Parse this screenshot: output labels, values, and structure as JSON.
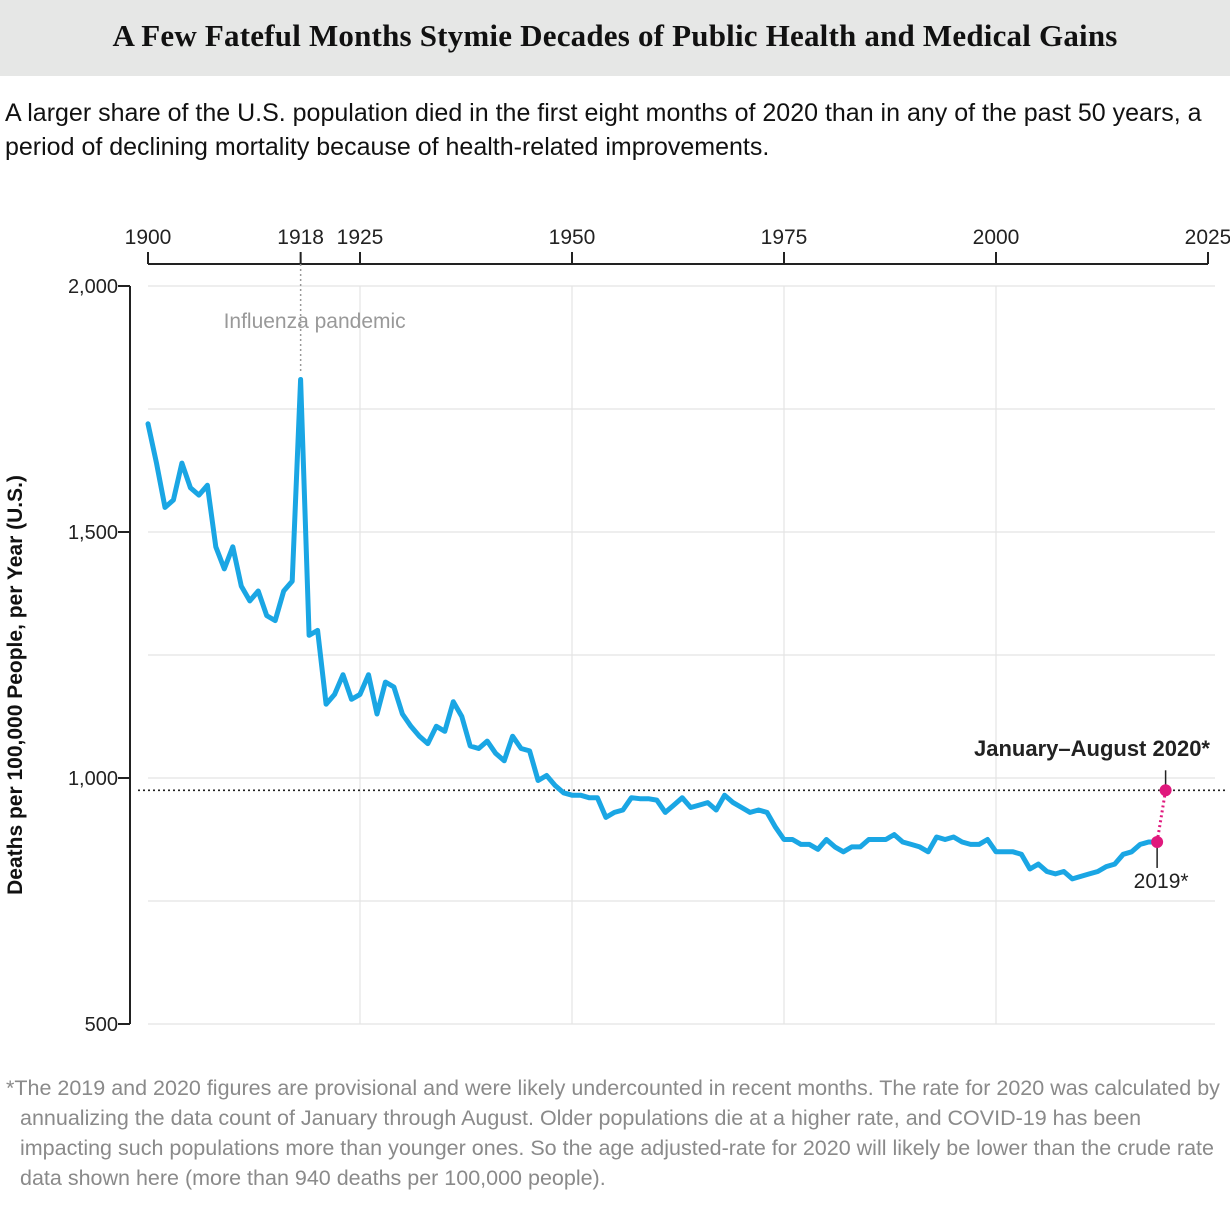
{
  "header": {
    "title": "A Few Fateful Months Stymie Decades of Public Health and Medical Gains",
    "subtitle": "A larger share of the U.S. population died in the first eight months of 2020 than in any of the past 50 years, a period of declining mortality because of health-related improvements."
  },
  "footnote": "*The 2019 and 2020 figures are provisional and were likely undercounted in recent months. The rate for 2020 was calculated by annualizing the data count of January through August. Older populations die at a higher rate, and COVID-19 has been impacting such populations more than younger ones. So the age adjusted-rate for 2020 will likely be lower than the crude rate data shown here (more than 940 deaths per 100,000 people).",
  "colors": {
    "line": "#1aa6e4",
    "highlight": "#e0197d",
    "grid": "#e4e4e4",
    "axis": "#222222",
    "annotation": "#999999"
  },
  "chart_data": {
    "type": "line",
    "title": "",
    "xlabel": "",
    "ylabel": "Deaths per 100,000 People, per Year (U.S.)",
    "xlim": [
      1900,
      2025
    ],
    "ylim": [
      500,
      2000
    ],
    "x_ticks": [
      1900,
      1918,
      1925,
      1950,
      1975,
      2000,
      2025
    ],
    "y_ticks": [
      500,
      1000,
      1500,
      2000
    ],
    "y_tick_labels": [
      "500",
      "1,000",
      "1,500",
      "2,000"
    ],
    "y_gridlines": [
      750,
      1250,
      1750
    ],
    "x_gridlines": [
      1925,
      1950,
      1975,
      2000
    ],
    "grid": true,
    "series": [
      {
        "x": [
          1900,
          1901,
          1902,
          1903,
          1904,
          1905,
          1906,
          1907,
          1908,
          1909,
          1910,
          1911,
          1912,
          1913,
          1914,
          1915,
          1916,
          1917,
          1918,
          1919,
          1920,
          1921,
          1922,
          1923,
          1924,
          1925,
          1926,
          1927,
          1928,
          1929,
          1930,
          1931,
          1932,
          1933,
          1934,
          1935,
          1936,
          1937,
          1938,
          1939,
          1940,
          1941,
          1942,
          1943,
          1944,
          1945,
          1946,
          1947,
          1948,
          1949,
          1950,
          1951,
          1952,
          1953,
          1954,
          1955,
          1956,
          1957,
          1958,
          1959,
          1960,
          1961,
          1962,
          1963,
          1964,
          1965,
          1966,
          1967,
          1968,
          1969,
          1970,
          1971,
          1972,
          1973,
          1974,
          1975,
          1976,
          1977,
          1978,
          1979,
          1980,
          1981,
          1982,
          1983,
          1984,
          1985,
          1986,
          1987,
          1988,
          1989,
          1990,
          1991,
          1992,
          1993,
          1994,
          1995,
          1996,
          1997,
          1998,
          1999,
          2000,
          2001,
          2002,
          2003,
          2004,
          2005,
          2006,
          2007,
          2008,
          2009,
          2010,
          2011,
          2012,
          2013,
          2014,
          2015,
          2016,
          2017,
          2018,
          2019
        ],
        "values": [
          1720,
          1640,
          1550,
          1565,
          1640,
          1590,
          1575,
          1595,
          1470,
          1425,
          1470,
          1390,
          1360,
          1380,
          1330,
          1320,
          1380,
          1400,
          1810,
          1290,
          1300,
          1150,
          1170,
          1210,
          1160,
          1170,
          1210,
          1130,
          1195,
          1185,
          1130,
          1105,
          1085,
          1070,
          1105,
          1095,
          1155,
          1125,
          1065,
          1060,
          1075,
          1050,
          1035,
          1085,
          1060,
          1055,
          995,
          1005,
          985,
          970,
          965,
          965,
          960,
          960,
          920,
          930,
          935,
          960,
          958,
          958,
          955,
          930,
          945,
          960,
          940,
          945,
          950,
          935,
          965,
          950,
          940,
          930,
          935,
          930,
          900,
          875,
          875,
          865,
          865,
          855,
          875,
          860,
          850,
          860,
          860,
          875,
          875,
          875,
          885,
          870,
          865,
          860,
          850,
          880,
          875,
          880,
          870,
          865,
          865,
          875,
          850,
          850,
          850,
          845,
          815,
          825,
          810,
          805,
          810,
          795,
          800,
          805,
          810,
          820,
          825,
          845,
          850,
          865,
          870,
          870
        ],
        "highlight": [
          {
            "x": 2019,
            "y": 870,
            "label": "2019*"
          },
          {
            "x": 2020,
            "y": 975,
            "label": "January–August 2020*"
          }
        ],
        "reference_line_y": 975
      }
    ],
    "annotations": [
      {
        "x": 1918,
        "text": "Influenza pandemic"
      }
    ]
  }
}
